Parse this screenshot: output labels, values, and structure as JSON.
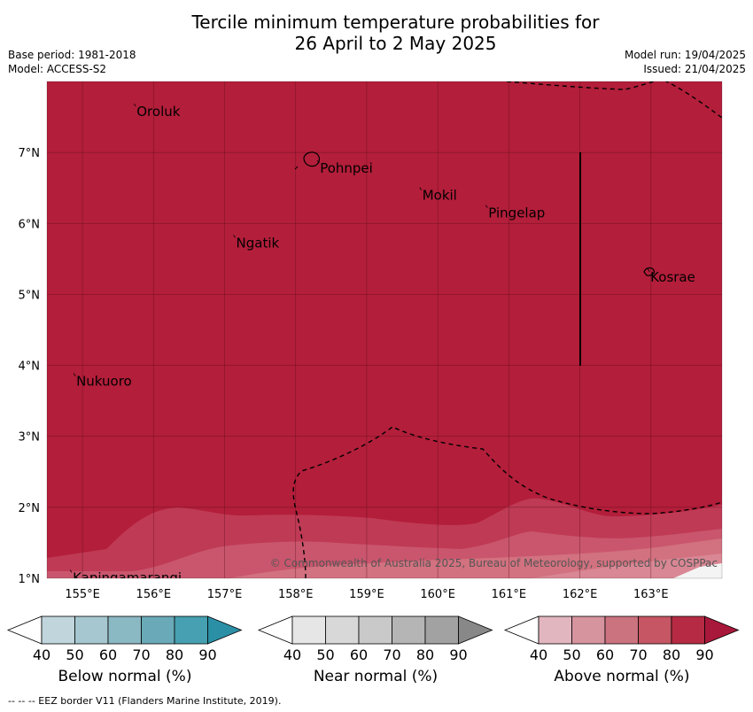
{
  "title": {
    "line1": "Tercile minimum temperature probabilities for",
    "line2": "26 April to 2 May 2025"
  },
  "meta": {
    "base_period": "Base period: 1981-2018",
    "model": "Model: ACCESS-S2",
    "model_run": "Model run: 19/04/2025",
    "issued": "Issued: 21/04/2025"
  },
  "map": {
    "lon_range": [
      154.5,
      164.0
    ],
    "lat_range": [
      1.0,
      8.0
    ],
    "lon_ticks": [
      "155°E",
      "156°E",
      "157°E",
      "158°E",
      "159°E",
      "160°E",
      "161°E",
      "162°E",
      "163°E"
    ],
    "lat_ticks": [
      "1°N",
      "2°N",
      "3°N",
      "4°N",
      "5°N",
      "6°N",
      "7°N"
    ],
    "grid": true,
    "dominant_category": "Above normal",
    "dominant_color": "#b31e3a",
    "places": [
      {
        "name": "Oroluk",
        "lon": 155.75,
        "lat": 7.65
      },
      {
        "name": "Pohnpei",
        "lon": 158.33,
        "lat": 6.85
      },
      {
        "name": "Mokil",
        "lon": 159.77,
        "lat": 6.47
      },
      {
        "name": "Pingelap",
        "lon": 160.7,
        "lat": 6.22
      },
      {
        "name": "Ngatik",
        "lon": 157.15,
        "lat": 5.8
      },
      {
        "name": "Kosrae",
        "lon": 162.98,
        "lat": 5.32
      },
      {
        "name": "Nukuoro",
        "lon": 154.9,
        "lat": 3.85
      },
      {
        "name": "Kapingamarangi",
        "lon": 154.85,
        "lat": 1.08
      }
    ],
    "copyright": "© Commonwealth of Australia 2025, Bureau of Meteorology, supported by COSPPac"
  },
  "colorbars": [
    {
      "label": "Below normal (%)",
      "ticks": [
        "40",
        "50",
        "60",
        "70",
        "80",
        "90"
      ],
      "colors": [
        "#ffffff",
        "#c0d5dc",
        "#a6c7cf",
        "#8ab8c3",
        "#6aaab8",
        "#46a0b1",
        "#2b8fa6"
      ]
    },
    {
      "label": "Near normal (%)",
      "ticks": [
        "40",
        "50",
        "60",
        "70",
        "80",
        "90"
      ],
      "colors": [
        "#ffffff",
        "#e6e6e6",
        "#d8d8d8",
        "#c9c9c9",
        "#b5b5b5",
        "#a2a2a2",
        "#888888"
      ]
    },
    {
      "label": "Above normal (%)",
      "ticks": [
        "40",
        "50",
        "60",
        "70",
        "80",
        "90"
      ],
      "colors": [
        "#ffffff",
        "#e2b6bf",
        "#d6949e",
        "#cc7380",
        "#c65664",
        "#b62b43",
        "#a8183a"
      ]
    }
  ],
  "footer": {
    "eez_note": "--  --  -- EEZ border V11 (Flanders Marine Institute, 2019)."
  }
}
